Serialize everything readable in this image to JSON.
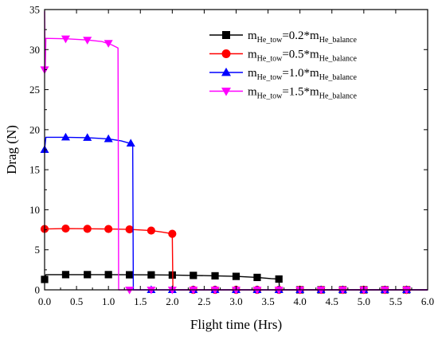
{
  "chart_data": {
    "type": "line",
    "xlabel": "Flight time (Hrs)",
    "ylabel": "Drag (N)",
    "xlim": [
      0,
      6
    ],
    "ylim": [
      0,
      35
    ],
    "xticks": [
      0.0,
      0.5,
      1.0,
      1.5,
      2.0,
      2.5,
      3.0,
      3.5,
      4.0,
      4.5,
      5.0,
      5.5,
      6.0
    ],
    "xtick_labels": [
      "0.0",
      "0.5",
      "1.0",
      "1.5",
      "2.0",
      "2.5",
      "3.0",
      "3.5",
      "4.0",
      "4.5",
      "5.0",
      "5.5",
      "6.0"
    ],
    "yticks": [
      0,
      5,
      10,
      15,
      20,
      25,
      30,
      35
    ],
    "ytick_labels": [
      "0",
      "5",
      "10",
      "15",
      "20",
      "25",
      "30",
      "35"
    ],
    "grid": false,
    "legend_position": "top-right",
    "series": [
      {
        "legend": {
          "pre": "m",
          "sub1": "He_tow",
          "mid": "=0.2*m",
          "sub2": "He_balance"
        },
        "color": "#000000",
        "marker": "square",
        "line": [
          [
            0,
            1.3
          ],
          [
            0.02,
            1.9
          ],
          [
            0.33,
            1.9
          ],
          [
            0.67,
            1.9
          ],
          [
            1.0,
            1.9
          ],
          [
            1.33,
            1.88
          ],
          [
            1.67,
            1.87
          ],
          [
            2.0,
            1.85
          ],
          [
            2.33,
            1.8
          ],
          [
            2.67,
            1.75
          ],
          [
            3.0,
            1.68
          ],
          [
            3.33,
            1.55
          ],
          [
            3.55,
            1.4
          ],
          [
            3.67,
            1.35
          ],
          [
            3.68,
            0
          ],
          [
            6.0,
            0
          ]
        ],
        "markers": [
          [
            0,
            1.3
          ],
          [
            0.33,
            1.9
          ],
          [
            0.67,
            1.9
          ],
          [
            1.0,
            1.9
          ],
          [
            1.33,
            1.88
          ],
          [
            1.67,
            1.87
          ],
          [
            2.0,
            1.85
          ],
          [
            2.33,
            1.8
          ],
          [
            2.67,
            1.75
          ],
          [
            3.0,
            1.68
          ],
          [
            3.33,
            1.55
          ],
          [
            3.67,
            1.35
          ],
          [
            4.0,
            0
          ],
          [
            4.33,
            0
          ],
          [
            4.67,
            0
          ],
          [
            5.0,
            0
          ],
          [
            5.33,
            0
          ],
          [
            5.67,
            0
          ]
        ]
      },
      {
        "legend": {
          "pre": "m",
          "sub1": "He_tow",
          "mid": "=0.5*m",
          "sub2": "He_balance"
        },
        "color": "#ff0000",
        "marker": "circle",
        "line": [
          [
            0,
            7.6
          ],
          [
            0.33,
            7.65
          ],
          [
            0.67,
            7.62
          ],
          [
            1.0,
            7.6
          ],
          [
            1.33,
            7.55
          ],
          [
            1.67,
            7.4
          ],
          [
            1.85,
            7.2
          ],
          [
            2.0,
            7.0
          ],
          [
            2.01,
            0
          ],
          [
            6.0,
            0
          ]
        ],
        "markers": [
          [
            0,
            7.6
          ],
          [
            0.33,
            7.65
          ],
          [
            0.67,
            7.62
          ],
          [
            1.0,
            7.6
          ],
          [
            1.33,
            7.55
          ],
          [
            1.67,
            7.4
          ],
          [
            2.0,
            7.0
          ],
          [
            2.33,
            0
          ],
          [
            2.67,
            0
          ],
          [
            3.0,
            0
          ],
          [
            3.33,
            0
          ],
          [
            3.67,
            0
          ],
          [
            4.0,
            0
          ],
          [
            4.33,
            0
          ],
          [
            4.67,
            0
          ],
          [
            5.0,
            0
          ],
          [
            5.33,
            0
          ],
          [
            5.67,
            0
          ]
        ]
      },
      {
        "legend": {
          "pre": "m",
          "sub1": "He_tow",
          "mid": "=1.0*m",
          "sub2": "He_balance"
        },
        "color": "#0000ff",
        "marker": "triangle-up",
        "line": [
          [
            0,
            17.5
          ],
          [
            0.02,
            19.05
          ],
          [
            0.33,
            19.05
          ],
          [
            0.67,
            19.0
          ],
          [
            1.0,
            18.85
          ],
          [
            1.2,
            18.6
          ],
          [
            1.38,
            18.2
          ],
          [
            1.39,
            0
          ],
          [
            6.0,
            0
          ]
        ],
        "markers": [
          [
            0,
            17.5
          ],
          [
            0.33,
            19.05
          ],
          [
            0.67,
            19.0
          ],
          [
            1.0,
            18.85
          ],
          [
            1.35,
            18.3
          ],
          [
            1.67,
            0
          ],
          [
            2.0,
            0
          ],
          [
            2.33,
            0
          ],
          [
            2.67,
            0
          ],
          [
            3.0,
            0
          ],
          [
            3.33,
            0
          ],
          [
            3.67,
            0
          ],
          [
            4.0,
            0
          ],
          [
            4.33,
            0
          ],
          [
            4.67,
            0
          ],
          [
            5.0,
            0
          ],
          [
            5.33,
            0
          ],
          [
            5.67,
            0
          ]
        ]
      },
      {
        "legend": {
          "pre": "m",
          "sub1": "He_tow",
          "mid": "=1.5*m",
          "sub2": "He_balance"
        },
        "color": "#ff00ff",
        "marker": "triangle-down",
        "line": [
          [
            0,
            34.8
          ],
          [
            0.01,
            27.5
          ],
          [
            0.02,
            31.4
          ],
          [
            0.33,
            31.35
          ],
          [
            0.67,
            31.2
          ],
          [
            0.9,
            31.0
          ],
          [
            1.05,
            30.6
          ],
          [
            1.15,
            30.2
          ],
          [
            1.16,
            0
          ],
          [
            6.0,
            0
          ]
        ],
        "markers": [
          [
            0,
            27.5
          ],
          [
            0.33,
            31.35
          ],
          [
            0.67,
            31.2
          ],
          [
            1.0,
            30.8
          ],
          [
            1.33,
            0
          ],
          [
            1.67,
            0
          ],
          [
            2.0,
            0
          ],
          [
            2.33,
            0
          ],
          [
            2.67,
            0
          ],
          [
            3.0,
            0
          ],
          [
            3.33,
            0
          ],
          [
            3.67,
            0
          ],
          [
            4.0,
            0
          ],
          [
            4.33,
            0
          ],
          [
            4.67,
            0
          ],
          [
            5.0,
            0
          ],
          [
            5.33,
            0
          ],
          [
            5.67,
            0
          ]
        ]
      }
    ]
  }
}
